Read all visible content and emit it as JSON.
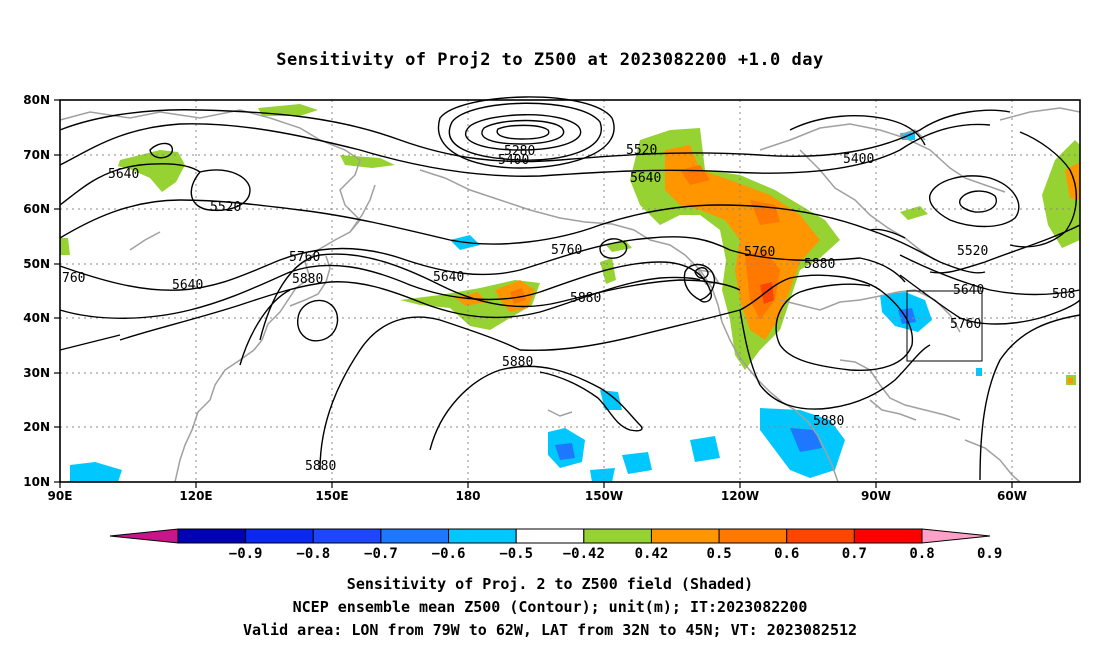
{
  "title": "Sensitivity of Proj2 to Z500 at 2023082200 +1.0 day",
  "axes": {
    "lat_labels": [
      "80N",
      "70N",
      "60N",
      "50N",
      "40N",
      "30N",
      "20N",
      "10N"
    ],
    "lon_labels": [
      "90E",
      "120E",
      "150E",
      "180",
      "150W",
      "120W",
      "90W",
      "60W"
    ]
  },
  "contour_labels": [
    {
      "text": "5640"
    },
    {
      "text": "5520"
    },
    {
      "text": "5640"
    },
    {
      "text": "760"
    },
    {
      "text": "5760"
    },
    {
      "text": "5880"
    },
    {
      "text": "5280"
    },
    {
      "text": "5400"
    },
    {
      "text": "5520"
    },
    {
      "text": "5640"
    },
    {
      "text": "5640"
    },
    {
      "text": "5760"
    },
    {
      "text": "5880"
    },
    {
      "text": "5880"
    },
    {
      "text": "5760"
    },
    {
      "text": "5880"
    },
    {
      "text": "5400"
    },
    {
      "text": "5520"
    },
    {
      "text": "5640"
    },
    {
      "text": "5760"
    },
    {
      "text": "588"
    },
    {
      "text": "5880"
    },
    {
      "text": "5880"
    }
  ],
  "valid_box": {
    "lon_from": "79W",
    "lon_to": "62W",
    "lat_from": "32N",
    "lat_to": "45N"
  },
  "colorbar": {
    "colors": [
      "#c8158c",
      "#0000b4",
      "#0a28f0",
      "#1e46ff",
      "#1e78ff",
      "#00c8ff",
      "#ffffff",
      "#96d232",
      "#ff9600",
      "#ff7800",
      "#ff4600",
      "#ff0000",
      "#ffa0c8"
    ],
    "tick_labels": [
      "-0.9",
      "-0.8",
      "-0.7",
      "-0.6",
      "-0.5",
      "-0.42",
      "0.42",
      "0.5",
      "0.6",
      "0.7",
      "0.8",
      "0.9"
    ]
  },
  "captions": {
    "line1": "Sensitivity of Proj. 2 to Z500 field (Shaded)",
    "line2": "NCEP ensemble mean Z500 (Contour); unit(m); IT:2023082200",
    "line3": "Valid area: LON from 79W to 62W, LAT from 32N to 45N; VT: 2023082512"
  }
}
